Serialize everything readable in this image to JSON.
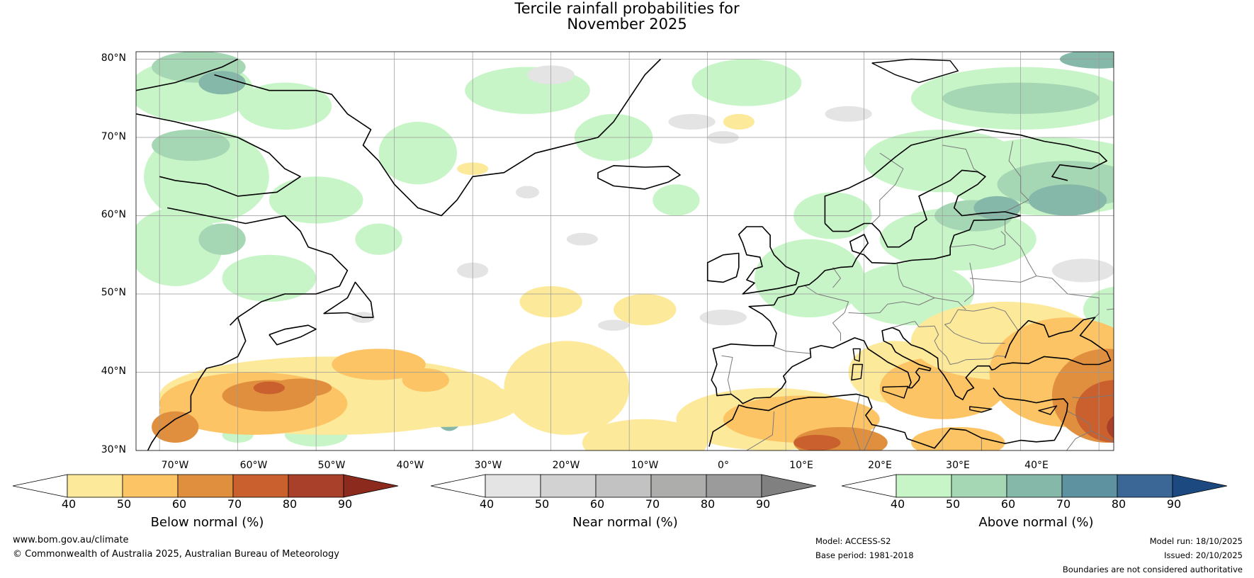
{
  "title": {
    "line1": "Tercile rainfall probabilities for",
    "line2": "November 2025"
  },
  "map": {
    "lat_labels": [
      "80°N",
      "70°N",
      "60°N",
      "50°N",
      "40°N",
      "30°N"
    ],
    "lon_labels": [
      "70°W",
      "60°W",
      "50°W",
      "40°W",
      "30°W",
      "20°W",
      "10°W",
      "0°",
      "10°E",
      "20°E",
      "30°E",
      "40°E"
    ],
    "colors": {
      "below": [
        "#fde99a",
        "#fdc466",
        "#e08f3e",
        "#c9602e",
        "#a8402a",
        "#8c2a1e"
      ],
      "near": [
        "#e4e4e4",
        "#d2d2d2",
        "#c2c2c2",
        "#adadab",
        "#9b9b9b",
        "#808080"
      ],
      "above": [
        "#c8f5c8",
        "#a6d7b4",
        "#86b8aa",
        "#5e92a0",
        "#3a6796",
        "#1c4a80"
      ],
      "coastline": "#000000",
      "borders": "#7a7a7a",
      "gridlines": "#999999"
    }
  },
  "colorbars": [
    {
      "title": "Below normal (%)",
      "ticks": [
        "40",
        "50",
        "60",
        "70",
        "80",
        "90"
      ]
    },
    {
      "title": "Near normal (%)",
      "ticks": [
        "40",
        "50",
        "60",
        "70",
        "80",
        "90"
      ]
    },
    {
      "title": "Above normal (%)",
      "ticks": [
        "40",
        "50",
        "60",
        "70",
        "80",
        "90"
      ]
    }
  ],
  "footer": {
    "website": "www.bom.gov.au/climate",
    "copyright": "© Commonwealth of Australia 2025, Australian Bureau of Meteorology",
    "model": "Model: ACCESS-S2",
    "base_period": "Base period: 1981-2018",
    "model_run": "Model run: 18/10/2025",
    "issued": "Issued: 20/10/2025",
    "disclaimer": "Boundaries are not considered authoritative"
  }
}
